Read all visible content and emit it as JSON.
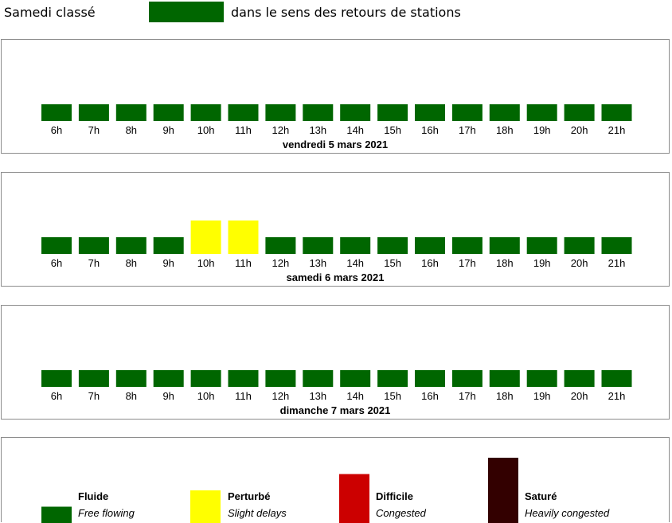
{
  "header": {
    "title": "Samedi classé",
    "direction": "dans le sens des retours de stations",
    "swatch_color": "#006600"
  },
  "chart_data": [
    {
      "type": "heatmap",
      "title": "vendredi 5 mars 2021",
      "categories": [
        "6h",
        "7h",
        "8h",
        "9h",
        "10h",
        "11h",
        "12h",
        "13h",
        "14h",
        "15h",
        "16h",
        "17h",
        "18h",
        "19h",
        "20h",
        "21h"
      ],
      "levels": [
        1,
        1,
        1,
        1,
        1,
        1,
        1,
        1,
        1,
        1,
        1,
        1,
        1,
        1,
        1,
        1
      ]
    },
    {
      "type": "heatmap",
      "title": "samedi 6 mars 2021",
      "categories": [
        "6h",
        "7h",
        "8h",
        "9h",
        "10h",
        "11h",
        "12h",
        "13h",
        "14h",
        "15h",
        "16h",
        "17h",
        "18h",
        "19h",
        "20h",
        "21h"
      ],
      "levels": [
        1,
        1,
        1,
        1,
        2,
        2,
        1,
        1,
        1,
        1,
        1,
        1,
        1,
        1,
        1,
        1
      ]
    },
    {
      "type": "heatmap",
      "title": "dimanche 7 mars 2021",
      "categories": [
        "6h",
        "7h",
        "8h",
        "9h",
        "10h",
        "11h",
        "12h",
        "13h",
        "14h",
        "15h",
        "16h",
        "17h",
        "18h",
        "19h",
        "20h",
        "21h"
      ],
      "levels": [
        1,
        1,
        1,
        1,
        1,
        1,
        1,
        1,
        1,
        1,
        1,
        1,
        1,
        1,
        1,
        1
      ]
    }
  ],
  "legend": {
    "items": [
      {
        "level": 1,
        "name": "Fluide",
        "desc": "Free flowing",
        "color": "#006600"
      },
      {
        "level": 2,
        "name": "Perturbé",
        "desc": "Slight delays",
        "color": "#ffff00"
      },
      {
        "level": 3,
        "name": "Difficile",
        "desc": "Congested",
        "color": "#cc0000"
      },
      {
        "level": 4,
        "name": "Saturé",
        "desc": "Heavily congested",
        "color": "#330000"
      }
    ]
  }
}
